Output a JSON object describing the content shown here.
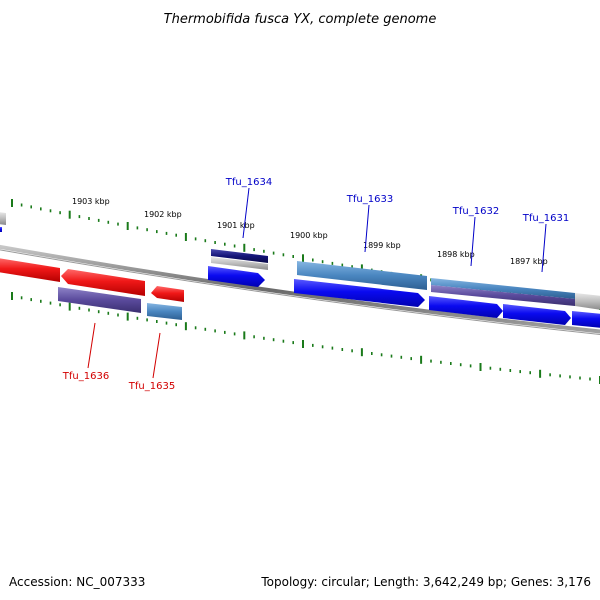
{
  "title": "Thermobifida fusca YX, complete genome",
  "footer": {
    "accession": "Accession: NC_007333",
    "summary": "Topology: circular; Length: 3,642,249 bp; Genes: 3,176"
  },
  "colors": {
    "forward_label": "#0000c8",
    "reverse_label": "#d20000",
    "tick": "#1a7a1a",
    "backbone": "#808080",
    "gene_blue": "#0a0af0",
    "gene_red": "#f01818",
    "gene_purple": "#5a4a9c",
    "gene_steel": "#4a86c0",
    "gene_navy": "#141478",
    "gene_gray": "#bcbcbc"
  },
  "scale_labels": [
    "1903 kbp",
    "1902 kbp",
    "1901 kbp",
    "1900 kbp",
    "1899 kbp",
    "1898 kbp",
    "1897 kbp"
  ],
  "genes_forward": [
    "Tfu_1634",
    "Tfu_1633",
    "Tfu_1632",
    "Tfu_1631"
  ],
  "genes_reverse": [
    "Tfu_1636",
    "Tfu_1635"
  ]
}
